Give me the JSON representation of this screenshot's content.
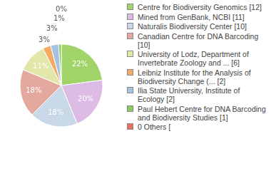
{
  "chart_data": {
    "type": "pie",
    "categories": [
      "Centre for Biodiversity Genomics [12]",
      "Mined from GenBank, NCBI [11]",
      "Naturalis Biodiversity Center [10]",
      "Canadian Centre for DNA Barcoding [10]",
      "University of Lodz, Department of Invertebrate Zoology and ... [6]",
      "Leibniz Institute for the Analysis of Biodiversity Change (... [2]",
      "Ilia State University, Institute of Ecology [2]",
      "Paul Hebert Centre for DNA Barcoding and Biodiversity Studies [1]",
      "0 Others ["
    ],
    "values": [
      22,
      20,
      18,
      18,
      11,
      3,
      3,
      1,
      0
    ],
    "value_labels": [
      "22%",
      "20%",
      "18%",
      "18%",
      "11%",
      "3%",
      "3%",
      "1%",
      "0%"
    ],
    "colors": [
      "#a0d468",
      "#dcbce4",
      "#c8d8e6",
      "#e4a89e",
      "#e2e6a8",
      "#f2aa64",
      "#a4c2e2",
      "#8cc860",
      "#e8705e"
    ],
    "data_labels": true,
    "legend": "right"
  }
}
